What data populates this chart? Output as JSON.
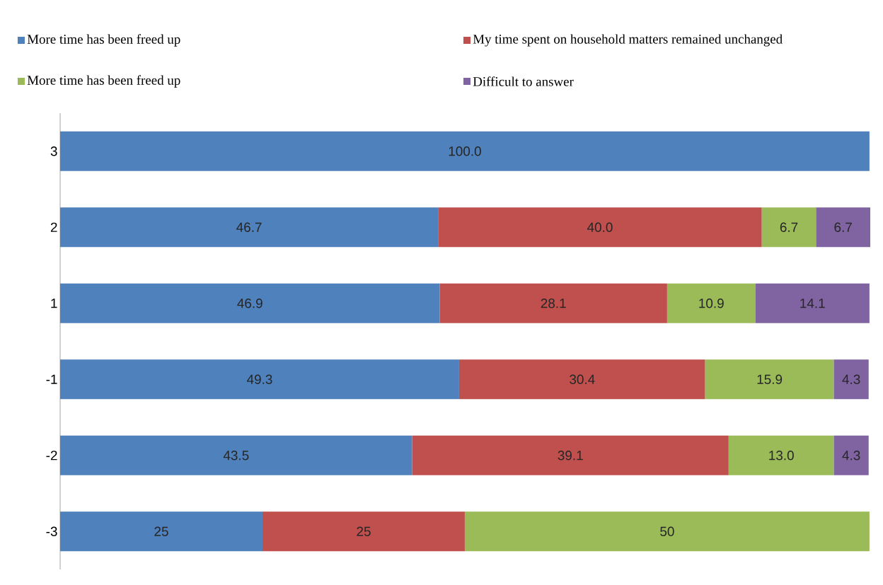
{
  "chart_data": {
    "type": "bar",
    "orientation": "horizontal",
    "stacked": true,
    "categories": [
      "3",
      "2",
      "1",
      "-1",
      "-2",
      "-3"
    ],
    "legend": "top",
    "tick_labels": "y",
    "xlim": [
      0,
      100.1
    ],
    "series": [
      {
        "name": "More time has been freed up",
        "color": "#4f81bd",
        "values": [
          100.0,
          46.7,
          46.9,
          49.3,
          43.5,
          25
        ],
        "value_labels": [
          "100.0",
          "46.7",
          "46.9",
          "49.3",
          "43.5",
          "25"
        ]
      },
      {
        "name": "My time spent on household matters remained unchanged",
        "color": "#c0504d",
        "values": [
          null,
          40.0,
          28.1,
          30.4,
          39.1,
          25
        ],
        "value_labels": [
          null,
          "40.0",
          "28.1",
          "30.4",
          "39.1",
          "25"
        ]
      },
      {
        "name": "More time has been freed up",
        "color": "#9bbb59",
        "values": [
          null,
          6.7,
          10.9,
          15.9,
          13.0,
          50
        ],
        "value_labels": [
          null,
          "6.7",
          "10.9",
          "15.9",
          "13.0",
          "50"
        ]
      },
      {
        "name": "Difficult to answer",
        "color": "#8064a2",
        "values": [
          null,
          6.7,
          14.1,
          4.3,
          4.3,
          null
        ],
        "value_labels": [
          null,
          "6.7",
          "14.1",
          "4.3",
          "4.3",
          null
        ]
      }
    ]
  }
}
